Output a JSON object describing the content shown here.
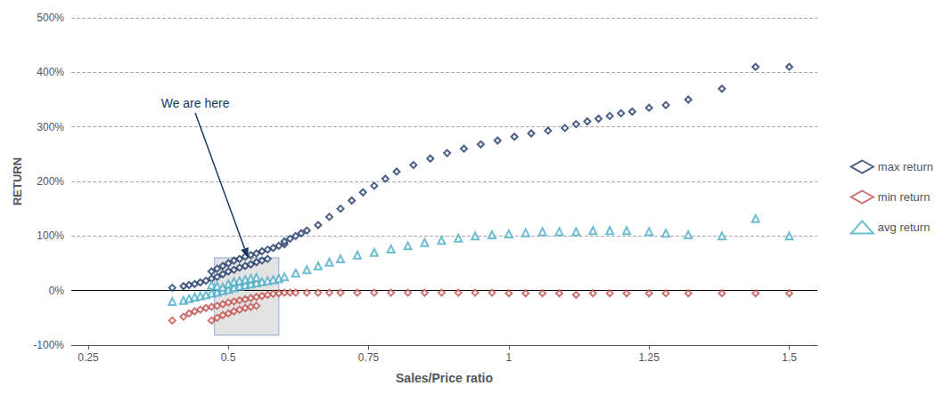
{
  "chart_data": {
    "type": "scatter",
    "xlabel": "Sales/Price ratio",
    "ylabel": "RETURN",
    "xlim": [
      0.22,
      1.55
    ],
    "ylim": [
      -1.0,
      5.0
    ],
    "xticks": [
      0.25,
      0.5,
      0.75,
      1,
      1.25,
      1.5
    ],
    "yticks": [
      {
        "value": -1.0,
        "label": "-100%"
      },
      {
        "value": 0.0,
        "label": "0%"
      },
      {
        "value": 1.0,
        "label": "100%"
      },
      {
        "value": 2.0,
        "label": "200%"
      },
      {
        "value": 3.0,
        "label": "300%"
      },
      {
        "value": 4.0,
        "label": "400%"
      },
      {
        "value": 5.0,
        "label": "500%"
      }
    ],
    "grid": "y",
    "legend": "right",
    "highlight_box": {
      "x": 0.475,
      "y": -0.82,
      "width": 0.115,
      "height": 1.42,
      "color": "#4472C4",
      "fill_color": "#C0C0C0"
    },
    "annotation": {
      "text": "We are here",
      "color": "#17375E",
      "x": 0.38,
      "y": 3.55,
      "arrow_x": 0.535,
      "arrow_y": 0.6
    },
    "series": [
      {
        "name": "max return",
        "color": "#1F3864",
        "marker": "diamond",
        "x": [
          0.4,
          0.42,
          0.43,
          0.44,
          0.45,
          0.46,
          0.47,
          0.47,
          0.48,
          0.48,
          0.49,
          0.49,
          0.5,
          0.5,
          0.51,
          0.51,
          0.52,
          0.52,
          0.53,
          0.53,
          0.54,
          0.54,
          0.55,
          0.55,
          0.56,
          0.56,
          0.57,
          0.57,
          0.58,
          0.59,
          0.6,
          0.6,
          0.61,
          0.62,
          0.63,
          0.64,
          0.66,
          0.68,
          0.7,
          0.72,
          0.74,
          0.76,
          0.78,
          0.8,
          0.83,
          0.86,
          0.89,
          0.92,
          0.95,
          0.98,
          1.01,
          1.04,
          1.07,
          1.1,
          1.12,
          1.14,
          1.16,
          1.18,
          1.2,
          1.22,
          1.25,
          1.28,
          1.32,
          1.38,
          1.44,
          1.5
        ],
        "values": [
          0.05,
          0.08,
          0.1,
          0.12,
          0.15,
          0.18,
          0.22,
          0.35,
          0.25,
          0.4,
          0.3,
          0.45,
          0.35,
          0.5,
          0.38,
          0.55,
          0.42,
          0.58,
          0.45,
          0.62,
          0.48,
          0.65,
          0.52,
          0.68,
          0.55,
          0.72,
          0.58,
          0.75,
          0.78,
          0.82,
          0.85,
          0.9,
          0.95,
          1.0,
          1.05,
          1.1,
          1.2,
          1.35,
          1.5,
          1.65,
          1.8,
          1.92,
          2.05,
          2.18,
          2.3,
          2.42,
          2.52,
          2.6,
          2.68,
          2.75,
          2.82,
          2.88,
          2.93,
          2.98,
          3.05,
          3.1,
          3.15,
          3.2,
          3.25,
          3.28,
          3.35,
          3.4,
          3.5,
          3.7,
          4.1,
          4.1
        ]
      },
      {
        "name": "min return",
        "color": "#C0504D",
        "marker": "diamond",
        "x": [
          0.4,
          0.42,
          0.43,
          0.44,
          0.45,
          0.46,
          0.47,
          0.47,
          0.48,
          0.48,
          0.49,
          0.49,
          0.5,
          0.5,
          0.51,
          0.51,
          0.52,
          0.52,
          0.53,
          0.53,
          0.54,
          0.54,
          0.55,
          0.55,
          0.56,
          0.57,
          0.58,
          0.59,
          0.6,
          0.61,
          0.62,
          0.64,
          0.66,
          0.68,
          0.7,
          0.73,
          0.76,
          0.79,
          0.82,
          0.85,
          0.88,
          0.91,
          0.94,
          0.97,
          1.0,
          1.03,
          1.06,
          1.09,
          1.12,
          1.15,
          1.18,
          1.21,
          1.25,
          1.28,
          1.32,
          1.38,
          1.44,
          1.5
        ],
        "values": [
          -0.55,
          -0.48,
          -0.42,
          -0.38,
          -0.35,
          -0.32,
          -0.3,
          -0.55,
          -0.28,
          -0.5,
          -0.25,
          -0.45,
          -0.22,
          -0.42,
          -0.2,
          -0.38,
          -0.18,
          -0.35,
          -0.16,
          -0.32,
          -0.14,
          -0.3,
          -0.12,
          -0.28,
          -0.1,
          -0.08,
          -0.06,
          -0.05,
          -0.04,
          -0.04,
          -0.04,
          -0.04,
          -0.04,
          -0.04,
          -0.04,
          -0.04,
          -0.04,
          -0.04,
          -0.04,
          -0.04,
          -0.04,
          -0.04,
          -0.04,
          -0.04,
          -0.05,
          -0.05,
          -0.05,
          -0.05,
          -0.08,
          -0.05,
          -0.05,
          -0.05,
          -0.05,
          -0.05,
          -0.05,
          -0.05,
          -0.05,
          -0.05
        ]
      },
      {
        "name": "avg return",
        "color": "#4BACC6",
        "marker": "triangle",
        "x": [
          0.4,
          0.42,
          0.43,
          0.44,
          0.45,
          0.46,
          0.47,
          0.47,
          0.48,
          0.48,
          0.49,
          0.49,
          0.5,
          0.5,
          0.51,
          0.51,
          0.52,
          0.52,
          0.53,
          0.53,
          0.54,
          0.54,
          0.55,
          0.55,
          0.56,
          0.57,
          0.58,
          0.59,
          0.6,
          0.62,
          0.64,
          0.66,
          0.68,
          0.7,
          0.73,
          0.76,
          0.79,
          0.82,
          0.85,
          0.88,
          0.91,
          0.94,
          0.97,
          1.0,
          1.03,
          1.06,
          1.09,
          1.12,
          1.15,
          1.18,
          1.21,
          1.25,
          1.28,
          1.32,
          1.38,
          1.44,
          1.5
        ],
        "values": [
          -0.2,
          -0.18,
          -0.15,
          -0.12,
          -0.1,
          -0.08,
          -0.05,
          0.1,
          -0.03,
          0.08,
          0.0,
          0.06,
          0.02,
          0.12,
          0.05,
          0.16,
          0.08,
          0.18,
          0.1,
          0.2,
          0.12,
          0.22,
          0.14,
          0.24,
          0.16,
          0.18,
          0.2,
          0.22,
          0.25,
          0.32,
          0.38,
          0.45,
          0.52,
          0.58,
          0.65,
          0.7,
          0.76,
          0.82,
          0.88,
          0.92,
          0.96,
          1.0,
          1.02,
          1.04,
          1.06,
          1.08,
          1.08,
          1.08,
          1.1,
          1.1,
          1.1,
          1.08,
          1.05,
          1.02,
          1.0,
          1.32,
          1.0
        ]
      }
    ]
  }
}
